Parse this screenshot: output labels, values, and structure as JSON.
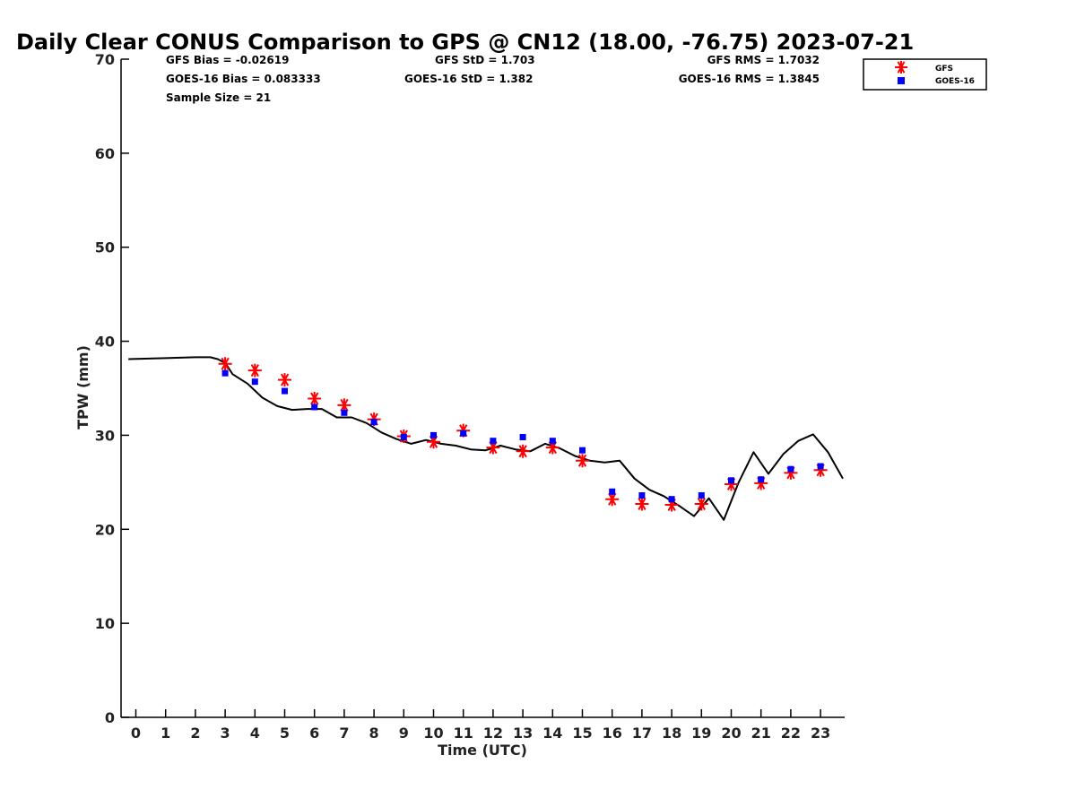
{
  "colors": {
    "gfs": "#ff0000",
    "goes16": "#0000ff",
    "gps_line": "#000000",
    "axis": "#000000"
  },
  "chart_data": {
    "type": "line",
    "title": "Daily Clear CONUS Comparison to GPS @ CN12 (18.00, -76.75) 2023-07-21",
    "xlabel": "Time (UTC)",
    "ylabel": "TPW (mm)",
    "xlim": [
      -0.5,
      23.75
    ],
    "ylim": [
      0,
      70
    ],
    "xticks": [
      0,
      1,
      2,
      3,
      4,
      5,
      6,
      7,
      8,
      9,
      10,
      11,
      12,
      13,
      14,
      15,
      16,
      17,
      18,
      19,
      20,
      21,
      22,
      23
    ],
    "yticks": [
      0,
      10,
      20,
      30,
      40,
      50,
      60,
      70
    ],
    "grid": false,
    "legend_position": "top-right",
    "stats": {
      "gfs_bias": "GFS Bias = -0.02619",
      "goes_bias": "GOES-16 Bias = 0.083333",
      "sample_size": "Sample Size = 21",
      "gfs_std": "GFS StD = 1.703",
      "goes_std": "GOES-16 StD = 1.382",
      "gfs_rms": "GFS RMS = 1.7032",
      "goes_rms": "GOES-16 RMS = 1.3845"
    },
    "series": [
      {
        "name": "GPS",
        "kind": "line",
        "x": [
          -0.25,
          1,
          2,
          2.5,
          2.75,
          3,
          3.25,
          3.75,
          4.25,
          4.75,
          5.25,
          5.75,
          6.25,
          6.75,
          7.25,
          7.75,
          8.25,
          8.75,
          9.25,
          9.75,
          10.25,
          10.75,
          11.25,
          11.75,
          12.25,
          12.75,
          13.25,
          13.75,
          14.25,
          14.75,
          15.25,
          15.75,
          16.25,
          16.75,
          17.25,
          17.75,
          18.25,
          18.75,
          19.25,
          19.75,
          20.25,
          20.75,
          21.25,
          21.75,
          22.25,
          22.75,
          23.25,
          23.75
        ],
        "y": [
          38.1,
          38.2,
          38.3,
          38.3,
          38.1,
          37.7,
          36.5,
          35.5,
          34.0,
          33.1,
          32.7,
          32.8,
          32.8,
          31.9,
          31.9,
          31.3,
          30.3,
          29.6,
          29.1,
          29.5,
          29.1,
          28.9,
          28.5,
          28.4,
          28.9,
          28.5,
          28.3,
          29.1,
          28.6,
          27.8,
          27.3,
          27.1,
          27.3,
          25.4,
          24.2,
          23.5,
          22.5,
          21.4,
          23.3,
          21.0,
          25.0,
          28.2,
          25.9,
          28.0,
          29.4,
          30.1,
          28.2,
          25.4
        ]
      },
      {
        "name": "GFS",
        "kind": "marker",
        "marker": "asterisk",
        "x": [
          3,
          4,
          5,
          6,
          7,
          8,
          9,
          10,
          11,
          12,
          13,
          14,
          15,
          16,
          17,
          18,
          19,
          20,
          21,
          22,
          23
        ],
        "y": [
          37.6,
          36.9,
          35.9,
          33.9,
          33.2,
          31.7,
          29.9,
          29.3,
          30.5,
          28.7,
          28.3,
          28.7,
          27.3,
          23.2,
          22.7,
          22.6,
          22.7,
          24.8,
          24.9,
          26.0,
          26.3
        ]
      },
      {
        "name": "GOES-16",
        "kind": "marker",
        "marker": "square",
        "x": [
          3,
          4,
          5,
          6,
          7,
          8,
          9,
          10,
          11,
          12,
          13,
          14,
          15,
          16,
          17,
          18,
          19,
          20,
          21,
          22,
          23
        ],
        "y": [
          36.6,
          35.7,
          34.7,
          33.0,
          32.4,
          31.4,
          29.8,
          30.0,
          30.2,
          29.4,
          29.8,
          29.4,
          28.4,
          24.0,
          23.6,
          23.2,
          23.6,
          25.2,
          25.3,
          26.4,
          26.7
        ]
      }
    ]
  }
}
